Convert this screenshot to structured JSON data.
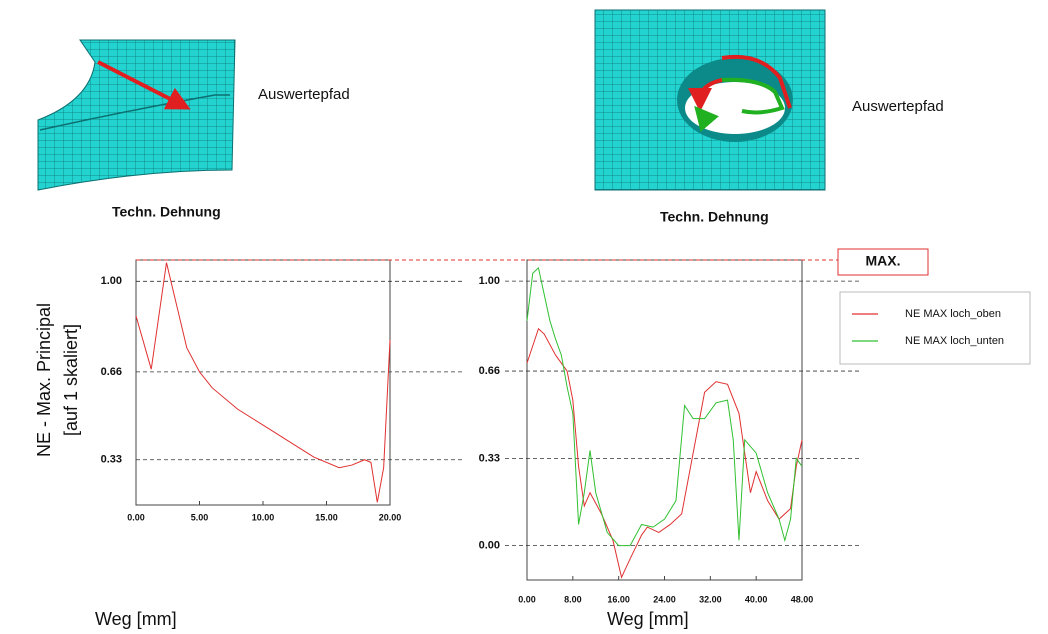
{
  "chart_data": [
    {
      "type": "line",
      "image_label": "Auswertepfad",
      "image_caption": "Techn. Dehnung",
      "y_label": [
        "NE - Max. Principal",
        "[auf 1 skaliert]"
      ],
      "x_label": "Weg [mm]",
      "xlim": [
        0,
        20
      ],
      "ylim": [
        0.16,
        1.08
      ],
      "xticks": [
        {
          "value": 0,
          "label": "0.00"
        },
        {
          "value": 5,
          "label": "5.00"
        },
        {
          "value": 10,
          "label": "10.00"
        },
        {
          "value": 15,
          "label": "15.00"
        },
        {
          "value": 20,
          "label": "20.00"
        }
      ],
      "yticks": [
        0.33,
        0.66,
        {
          "value": 1,
          "label": "1.00"
        }
      ],
      "grid": true,
      "series": [
        {
          "color": "#e03030",
          "x": [
            0,
            1.2,
            2.4,
            4,
            5,
            6,
            8,
            10,
            12,
            14,
            16,
            17,
            18,
            18.5,
            19,
            19.5,
            20
          ],
          "values": [
            0.87,
            0.67,
            1.07,
            0.75,
            0.66,
            0.6,
            0.52,
            0.46,
            0.4,
            0.34,
            0.3,
            0.31,
            0.33,
            0.32,
            0.17,
            0.3,
            0.78
          ]
        }
      ]
    },
    {
      "type": "line",
      "image_label": "Auswertepfad",
      "image_caption": "Techn. Dehnung",
      "x_label": "Weg [mm]",
      "annotation": "MAX.",
      "legend": "right",
      "xlim": [
        0,
        48
      ],
      "ylim": [
        -0.13,
        1.08
      ],
      "xticks": [
        {
          "value": 0,
          "label": "0.00"
        },
        {
          "value": 8,
          "label": "8.00"
        },
        {
          "value": 16,
          "label": "16.00"
        },
        {
          "value": 24,
          "label": "24.00"
        },
        {
          "value": 32,
          "label": "32.00"
        },
        {
          "value": 40,
          "label": "40.00"
        },
        {
          "value": 48,
          "label": "48.00"
        }
      ],
      "yticks": [
        {
          "value": 0,
          "label": "0.00"
        },
        0.33,
        0.66,
        {
          "value": 1,
          "label": "1.00"
        }
      ],
      "grid": true,
      "series": [
        {
          "name": "NE MAX loch_oben",
          "color": "#e03030",
          "x": [
            0,
            2,
            3,
            5,
            7,
            8,
            9,
            10,
            11,
            13,
            15,
            16.5,
            18,
            20,
            21,
            23,
            25,
            27,
            29,
            31,
            33,
            35,
            37,
            38,
            39,
            40,
            42,
            44,
            46,
            47,
            48
          ],
          "values": [
            0.69,
            0.82,
            0.8,
            0.72,
            0.66,
            0.55,
            0.3,
            0.15,
            0.2,
            0.12,
            0.02,
            -0.12,
            -0.05,
            0.04,
            0.07,
            0.05,
            0.08,
            0.12,
            0.35,
            0.58,
            0.62,
            0.61,
            0.5,
            0.35,
            0.2,
            0.28,
            0.17,
            0.1,
            0.14,
            0.3,
            0.4
          ]
        },
        {
          "name": "NE MAX loch_unten",
          "color": "#30c030",
          "x": [
            0,
            1,
            2,
            3,
            4,
            5,
            6,
            7,
            8,
            9,
            10,
            11,
            12,
            14,
            16,
            18,
            20,
            22,
            24,
            26,
            27.5,
            29,
            31,
            33,
            35,
            36,
            37,
            38,
            40,
            42,
            44,
            45,
            46,
            47,
            48
          ],
          "values": [
            0.85,
            1.03,
            1.05,
            0.95,
            0.85,
            0.78,
            0.72,
            0.6,
            0.5,
            0.08,
            0.2,
            0.36,
            0.2,
            0.05,
            0,
            0,
            0.08,
            0.07,
            0.1,
            0.17,
            0.53,
            0.48,
            0.48,
            0.54,
            0.55,
            0.4,
            0.02,
            0.4,
            0.35,
            0.2,
            0.1,
            0.02,
            0.1,
            0.33,
            0.3
          ]
        }
      ]
    }
  ]
}
